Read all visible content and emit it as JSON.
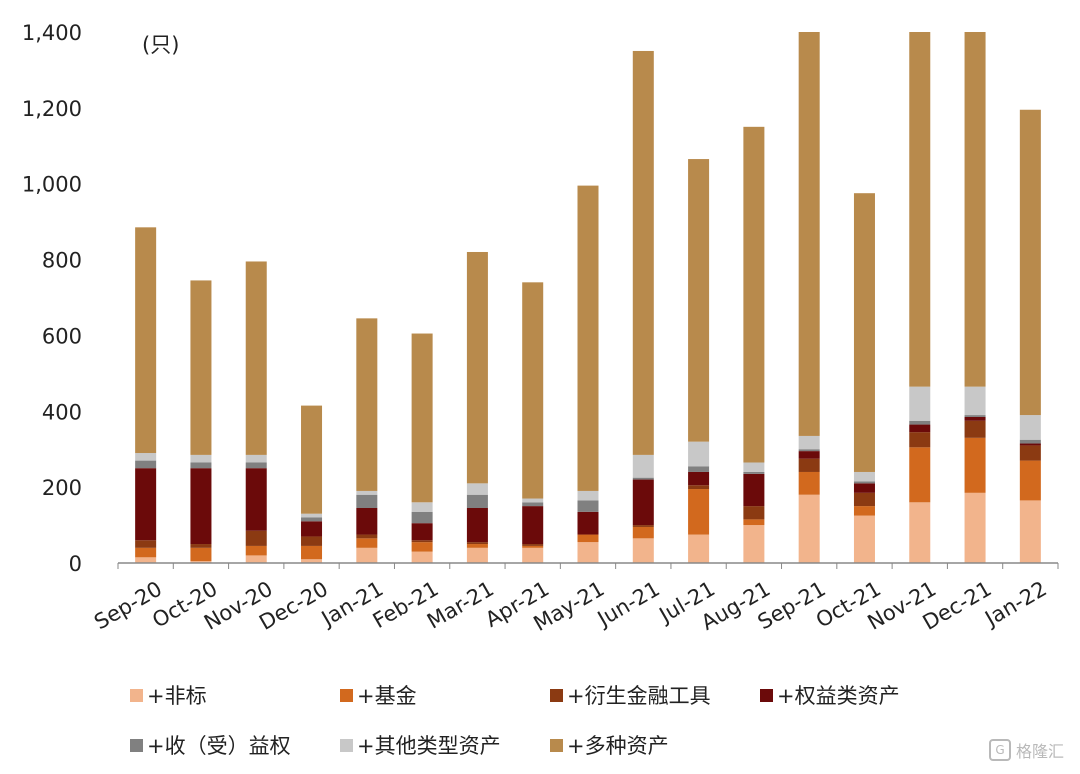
{
  "chart_data": {
    "type": "bar",
    "stacked": true,
    "unit_label": "(只)",
    "ylim": [
      0,
      1400
    ],
    "yticks": [
      "0",
      "200",
      "400",
      "600",
      "800",
      "1,000",
      "1,200",
      "1,400"
    ],
    "categories": [
      "Sep-20",
      "Oct-20",
      "Nov-20",
      "Dec-20",
      "Jan-21",
      "Feb-21",
      "Mar-21",
      "Apr-21",
      "May-21",
      "Jun-21",
      "Jul-21",
      "Aug-21",
      "Sep-21",
      "Oct-21",
      "Nov-21",
      "Dec-21",
      "Jan-22"
    ],
    "series": [
      {
        "name": "+非标",
        "color": "#f2b48c",
        "values": [
          15,
          5,
          20,
          10,
          40,
          30,
          40,
          40,
          55,
          65,
          75,
          100,
          180,
          125,
          160,
          185,
          165
        ]
      },
      {
        "name": "+基金",
        "color": "#d2691e",
        "values": [
          25,
          35,
          25,
          35,
          25,
          25,
          10,
          5,
          20,
          30,
          120,
          15,
          60,
          25,
          145,
          145,
          105
        ]
      },
      {
        "name": "+衍生金融工具",
        "color": "#8b3a12",
        "values": [
          20,
          10,
          40,
          25,
          10,
          5,
          5,
          5,
          0,
          5,
          10,
          35,
          35,
          35,
          40,
          45,
          40
        ]
      },
      {
        "name": "+权益类资产",
        "color": "#6b0a0a",
        "values": [
          190,
          200,
          165,
          40,
          70,
          45,
          90,
          100,
          60,
          120,
          35,
          85,
          20,
          25,
          20,
          10,
          5
        ]
      },
      {
        "name": "+收（受）益权",
        "color": "#808080",
        "values": [
          20,
          15,
          15,
          10,
          35,
          30,
          35,
          10,
          30,
          5,
          15,
          5,
          5,
          5,
          10,
          5,
          10
        ]
      },
      {
        "name": "+其他类型资产",
        "color": "#c8c8c8",
        "values": [
          20,
          20,
          20,
          10,
          10,
          25,
          30,
          10,
          25,
          60,
          65,
          25,
          35,
          25,
          90,
          75,
          65
        ]
      },
      {
        "name": "+多种资产",
        "color": "#b88a4c",
        "values": [
          595,
          460,
          510,
          285,
          455,
          445,
          610,
          570,
          805,
          1065,
          745,
          885,
          1065,
          735,
          940,
          940,
          805
        ]
      }
    ]
  },
  "legend": {
    "items": [
      "+非标",
      "+基金",
      "+衍生金融工具",
      "+权益类资产",
      "+收（受）益权",
      "+其他类型资产",
      "+多种资产"
    ]
  },
  "watermark": {
    "text": "格隆汇"
  }
}
